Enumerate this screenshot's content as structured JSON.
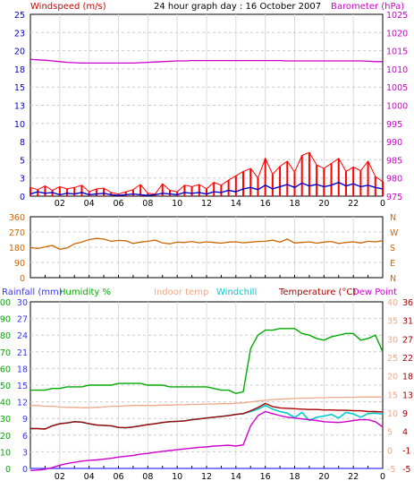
{
  "header": {
    "left_title": "Windspeed (m/s)",
    "center_title": "24 hour graph day : 16 October 2007",
    "right_title": "Barometer (hPa)"
  },
  "legend_bottom": {
    "rainfall": "Rainfall (mm)",
    "humidity": "Humidity %",
    "indoor": "Indoor temp",
    "windchill": "Windchill",
    "temperature": "Temperature (°C)",
    "dewpoint": "Dew Point"
  },
  "colors": {
    "wind_avg": "#0000cc",
    "wind_gust": "#ff0000",
    "barometer": "#cc00cc",
    "direction": "#cc6600",
    "rainfall": "#3333ff",
    "humidity": "#00aa00",
    "indoor": "#f0a888",
    "windchill": "#00cccc",
    "temperature": "#aa0000",
    "dewpoint": "#cc00cc",
    "grid": "#cccccc"
  },
  "x_ticks": [
    "02",
    "04",
    "06",
    "08",
    "10",
    "12",
    "14",
    "16",
    "18",
    "20",
    "22",
    "0"
  ],
  "chart_data": [
    {
      "type": "line",
      "id": "wind_baro",
      "left_axis": {
        "label": "Windspeed (m/s)",
        "ticks": [
          "25",
          "23",
          "20",
          "18",
          "15",
          "13",
          "10",
          "8",
          "5",
          "3",
          "0"
        ],
        "ylim": [
          0,
          25
        ]
      },
      "right_axis": {
        "label": "Barometer (hPa)",
        "ticks": [
          "1025",
          "1020",
          "1015",
          "1010",
          "1005",
          "1000",
          "995",
          "990",
          "985",
          "980",
          "975"
        ],
        "ylim": [
          975,
          1025
        ]
      },
      "x": [
        0,
        0.5,
        1,
        1.5,
        2,
        2.5,
        3,
        3.5,
        4,
        4.5,
        5,
        5.5,
        6,
        6.5,
        7,
        7.5,
        8,
        8.5,
        9,
        9.5,
        10,
        10.5,
        11,
        11.5,
        12,
        12.5,
        13,
        13.5,
        14,
        14.5,
        15,
        15.5,
        16,
        16.5,
        17,
        17.5,
        18,
        18.5,
        19,
        19.5,
        20,
        20.5,
        21,
        21.5,
        22,
        22.5,
        23,
        23.5,
        24
      ],
      "series": [
        {
          "name": "Barometer",
          "axis": "right",
          "values": [
            1012.6,
            1012.5,
            1012.4,
            1012.2,
            1012.0,
            1011.8,
            1011.7,
            1011.6,
            1011.6,
            1011.6,
            1011.6,
            1011.6,
            1011.6,
            1011.6,
            1011.6,
            1011.7,
            1011.8,
            1011.9,
            1012.0,
            1012.1,
            1012.2,
            1012.2,
            1012.3,
            1012.3,
            1012.3,
            1012.3,
            1012.3,
            1012.3,
            1012.3,
            1012.3,
            1012.3,
            1012.3,
            1012.3,
            1012.3,
            1012.3,
            1012.2,
            1012.2,
            1012.2,
            1012.2,
            1012.2,
            1012.2,
            1012.2,
            1012.2,
            1012.2,
            1012.2,
            1012.2,
            1012.1,
            1012.0,
            1012.0
          ]
        },
        {
          "name": "Windspeed",
          "axis": "left",
          "values": [
            0.3,
            0.6,
            0.4,
            0.5,
            0.2,
            0.4,
            0.3,
            0.5,
            0.2,
            0.3,
            0.4,
            0.2,
            0.1,
            0.2,
            0.3,
            0.2,
            0.1,
            0.2,
            0.4,
            0.3,
            0.2,
            0.5,
            0.4,
            0.5,
            0.3,
            0.6,
            0.5,
            0.8,
            0.6,
            1.0,
            1.2,
            0.9,
            1.5,
            1.0,
            1.3,
            1.6,
            1.2,
            1.8,
            1.4,
            1.6,
            1.3,
            1.5,
            1.9,
            1.4,
            1.7,
            1.3,
            1.5,
            1.2,
            1.0
          ]
        },
        {
          "name": "Gust",
          "axis": "left",
          "values": [
            1.2,
            0.9,
            1.4,
            0.8,
            1.3,
            1.0,
            1.2,
            1.5,
            0.6,
            1.0,
            1.1,
            0.5,
            0.3,
            0.6,
            0.9,
            1.6,
            0.4,
            0.3,
            1.7,
            0.8,
            0.6,
            1.5,
            1.3,
            1.6,
            1.0,
            1.9,
            1.5,
            2.2,
            2.8,
            3.4,
            3.8,
            2.5,
            5.2,
            3.0,
            4.1,
            4.8,
            3.3,
            5.6,
            6.0,
            4.3,
            3.8,
            4.5,
            5.2,
            3.4,
            4.0,
            3.5,
            4.8,
            2.7,
            2.0
          ]
        }
      ]
    },
    {
      "type": "line",
      "id": "direction",
      "left_axis": {
        "ticks": [
          "360",
          "270",
          "180",
          "90",
          "0"
        ],
        "ylim": [
          0,
          360
        ]
      },
      "right_axis": {
        "ticks": [
          "N",
          "W",
          "S",
          "E",
          "N"
        ]
      },
      "x": [
        0,
        0.5,
        1,
        1.5,
        2,
        2.5,
        3,
        3.5,
        4,
        4.5,
        5,
        5.5,
        6,
        6.5,
        7,
        7.5,
        8,
        8.5,
        9,
        9.5,
        10,
        10.5,
        11,
        11.5,
        12,
        12.5,
        13,
        13.5,
        14,
        14.5,
        15,
        15.5,
        16,
        16.5,
        17,
        17.5,
        18,
        18.5,
        19,
        19.5,
        20,
        20.5,
        21,
        21.5,
        22,
        22.5,
        23,
        23.5,
        24
      ],
      "series": [
        {
          "name": "Direction",
          "values": [
            178,
            172,
            182,
            190,
            168,
            175,
            200,
            210,
            225,
            232,
            228,
            215,
            220,
            218,
            202,
            210,
            215,
            222,
            205,
            200,
            210,
            208,
            214,
            206,
            212,
            208,
            204,
            210,
            212,
            206,
            210,
            214,
            215,
            222,
            210,
            228,
            205,
            208,
            212,
            204,
            210,
            214,
            202,
            208,
            212,
            205,
            215,
            212,
            218
          ]
        }
      ]
    },
    {
      "type": "line",
      "id": "temp_hum",
      "axes": {
        "rainfall": {
          "label": "Rainfall (mm)",
          "ticks": [
            "30",
            "27",
            "24",
            "21",
            "18",
            "15",
            "12",
            "9",
            "6",
            "3",
            "0"
          ],
          "ylim": [
            0,
            30
          ]
        },
        "humidity": {
          "label": "Humidity %",
          "ticks": [
            "100",
            "90",
            "80",
            "70",
            "60",
            "50",
            "40",
            "30",
            "20",
            "10",
            "0"
          ],
          "ylim": [
            0,
            100
          ]
        },
        "indoor": {
          "label": "Indoor temp",
          "ticks": [
            "40",
            "35",
            "30",
            "25",
            "20",
            "15",
            "10",
            "5",
            "0",
            "-5"
          ],
          "ylim": [
            -5,
            40
          ]
        },
        "temperature": {
          "label": "Temperature (°C)",
          "ticks": [
            "36",
            "31",
            "27",
            "22",
            "18",
            "13",
            "9",
            "4",
            "-1",
            "-5"
          ],
          "ylim": [
            -5,
            36
          ]
        }
      },
      "x": [
        0,
        0.5,
        1,
        1.5,
        2,
        2.5,
        3,
        3.5,
        4,
        4.5,
        5,
        5.5,
        6,
        6.5,
        7,
        7.5,
        8,
        8.5,
        9,
        9.5,
        10,
        10.5,
        11,
        11.5,
        12,
        12.5,
        13,
        13.5,
        14,
        14.5,
        15,
        15.5,
        16,
        16.5,
        17,
        17.5,
        18,
        18.5,
        19,
        19.5,
        20,
        20.5,
        21,
        21.5,
        22,
        22.5,
        23,
        23.5,
        24
      ],
      "series": [
        {
          "name": "Humidity",
          "axis": "humidity",
          "values": [
            47,
            47,
            47,
            48,
            48,
            49,
            49,
            49,
            50,
            50,
            50,
            50,
            51,
            51,
            51,
            51,
            50,
            50,
            50,
            49,
            49,
            49,
            49,
            49,
            49,
            48,
            47,
            47,
            45,
            46,
            72,
            80,
            83,
            83,
            84,
            84,
            84,
            81,
            80,
            78,
            77,
            79,
            80,
            81,
            81,
            77,
            78,
            80,
            70
          ]
        },
        {
          "name": "Indoor temp",
          "axis": "indoor",
          "values": [
            12,
            12,
            11.8,
            11.8,
            11.6,
            11.5,
            11.5,
            11.4,
            11.4,
            11.5,
            11.6,
            11.8,
            11.8,
            11.9,
            12.0,
            12.0,
            12.0,
            12.0,
            12.1,
            12.1,
            12.2,
            12.2,
            12.3,
            12.3,
            12.4,
            12.4,
            12.5,
            12.5,
            12.6,
            12.7,
            13.0,
            13.2,
            13.4,
            13.6,
            13.7,
            13.8,
            13.9,
            14.0,
            14.0,
            14.1,
            14.1,
            14.2,
            14.2,
            14.2,
            14.2,
            14.3,
            14.3,
            14.3,
            14.3
          ]
        },
        {
          "name": "Temperature",
          "axis": "temperature",
          "values": [
            4.8,
            4.8,
            4.7,
            5.5,
            6.0,
            6.2,
            6.5,
            6.4,
            6.0,
            5.7,
            5.6,
            5.5,
            5.1,
            5.0,
            5.2,
            5.5,
            5.8,
            6.0,
            6.3,
            6.5,
            6.6,
            6.7,
            7.0,
            7.2,
            7.4,
            7.6,
            7.8,
            8.0,
            8.3,
            8.5,
            9.2,
            10.0,
            11.0,
            10.2,
            9.9,
            9.8,
            9.7,
            9.6,
            9.5,
            9.5,
            9.4,
            9.4,
            9.3,
            9.3,
            9.2,
            9.2,
            9.0,
            9.0,
            8.9
          ]
        },
        {
          "name": "Windchill",
          "axis": "temperature",
          "values": [
            4.8,
            4.8,
            4.7,
            5.5,
            6.0,
            6.2,
            6.5,
            6.4,
            6.0,
            5.7,
            5.6,
            5.5,
            5.1,
            5.0,
            5.2,
            5.5,
            5.8,
            6.0,
            6.3,
            6.5,
            6.6,
            6.7,
            7.0,
            7.2,
            7.4,
            7.6,
            7.8,
            8.0,
            8.3,
            8.5,
            9.0,
            9.6,
            10.5,
            9.6,
            9.0,
            8.6,
            7.5,
            8.8,
            6.8,
            7.6,
            7.9,
            8.3,
            7.4,
            8.8,
            8.4,
            7.6,
            8.5,
            8.6,
            8.4
          ]
        },
        {
          "name": "Dew Point",
          "axis": "temperature",
          "values": [
            -5.5,
            -5.4,
            -5.2,
            -4.8,
            -4.2,
            -3.8,
            -3.5,
            -3.2,
            -3.0,
            -2.9,
            -2.7,
            -2.5,
            -2.2,
            -2.0,
            -1.8,
            -1.5,
            -1.3,
            -1.0,
            -0.8,
            -0.6,
            -0.4,
            -0.2,
            0.0,
            0.2,
            0.3,
            0.5,
            0.6,
            0.7,
            0.5,
            0.8,
            5.5,
            8.0,
            9.0,
            8.5,
            8.0,
            7.6,
            7.4,
            7.2,
            7.0,
            6.8,
            6.5,
            6.4,
            6.3,
            6.5,
            6.8,
            7.0,
            7.0,
            6.5,
            5.2
          ]
        },
        {
          "name": "Rainfall",
          "axis": "rainfall",
          "values": [
            0,
            0,
            0,
            0,
            0,
            0,
            0,
            0,
            0,
            0,
            0,
            0,
            0,
            0,
            0,
            0,
            0,
            0,
            0,
            0,
            0,
            0,
            0,
            0,
            0,
            0,
            0,
            0,
            0,
            0,
            0,
            0,
            0,
            0,
            0,
            0,
            0,
            0,
            0,
            0,
            0,
            0,
            0,
            0,
            0,
            0,
            0,
            0,
            0
          ]
        }
      ]
    }
  ]
}
